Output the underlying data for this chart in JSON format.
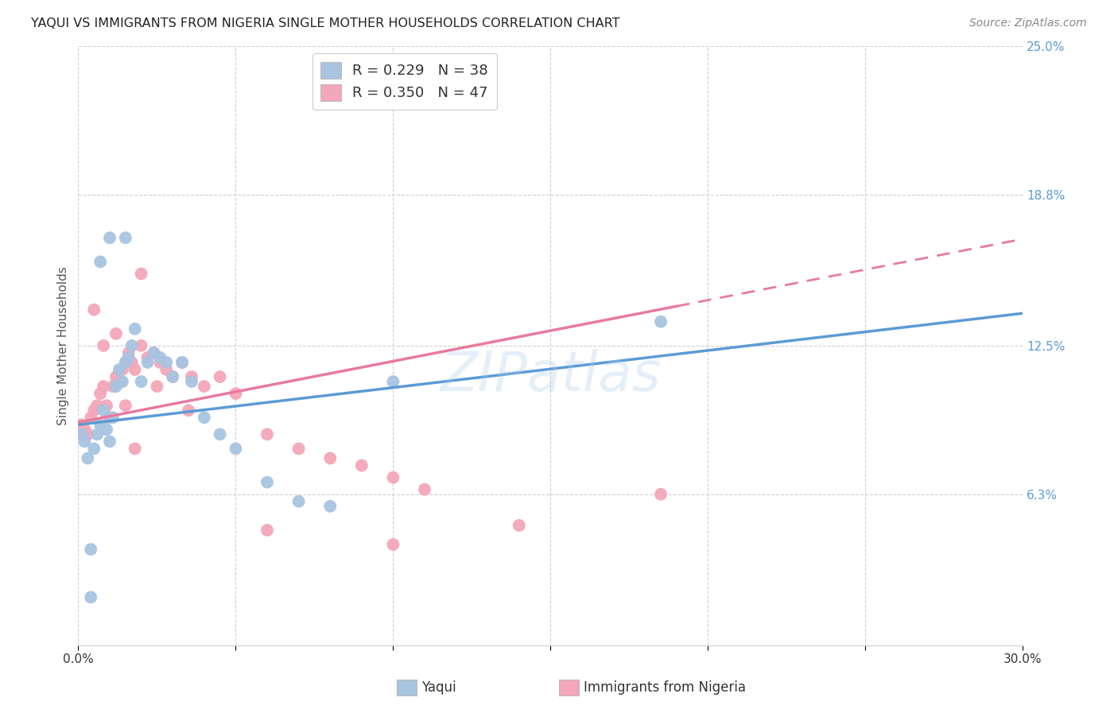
{
  "title": "YAQUI VS IMMIGRANTS FROM NIGERIA SINGLE MOTHER HOUSEHOLDS CORRELATION CHART",
  "source": "Source: ZipAtlas.com",
  "ylabel_label": "Single Mother Households",
  "x_min": 0.0,
  "x_max": 0.3,
  "y_min": 0.0,
  "y_max": 0.25,
  "x_tick_positions": [
    0.0,
    0.05,
    0.1,
    0.15,
    0.2,
    0.25,
    0.3
  ],
  "x_tick_labels": [
    "0.0%",
    "",
    "",
    "",
    "",
    "",
    "30.0%"
  ],
  "y_tick_labels_right": [
    "25.0%",
    "18.8%",
    "12.5%",
    "6.3%"
  ],
  "y_tick_vals_right": [
    0.25,
    0.188,
    0.125,
    0.063
  ],
  "blue_color": "#5b9bd5",
  "pink_color": "#e87aa0",
  "blue_scatter_color": "#a8c4e0",
  "pink_scatter_color": "#f4a7b9",
  "background_color": "#ffffff",
  "grid_color": "#d0d0d0",
  "watermark": "ZIPatlas",
  "blue_line_intercept": 0.092,
  "blue_line_slope": 0.155,
  "pink_line_intercept": 0.093,
  "pink_line_slope": 0.255,
  "legend_r1": "R = 0.229",
  "legend_n1": "N = 38",
  "legend_r2": "R = 0.350",
  "legend_n2": "N = 47",
  "blue_points_x": [
    0.001,
    0.002,
    0.003,
    0.004,
    0.005,
    0.006,
    0.007,
    0.008,
    0.009,
    0.01,
    0.011,
    0.012,
    0.013,
    0.014,
    0.015,
    0.016,
    0.017,
    0.018,
    0.02,
    0.022,
    0.024,
    0.026,
    0.028,
    0.03,
    0.033,
    0.036,
    0.04,
    0.045,
    0.05,
    0.06,
    0.07,
    0.08,
    0.1,
    0.004,
    0.007,
    0.01,
    0.185,
    0.015
  ],
  "blue_points_y": [
    0.088,
    0.085,
    0.078,
    0.04,
    0.082,
    0.088,
    0.092,
    0.098,
    0.09,
    0.085,
    0.095,
    0.108,
    0.115,
    0.11,
    0.118,
    0.12,
    0.125,
    0.132,
    0.11,
    0.118,
    0.122,
    0.12,
    0.118,
    0.112,
    0.118,
    0.11,
    0.095,
    0.088,
    0.082,
    0.068,
    0.06,
    0.058,
    0.11,
    0.02,
    0.16,
    0.17,
    0.135,
    0.17
  ],
  "pink_points_x": [
    0.001,
    0.002,
    0.003,
    0.004,
    0.005,
    0.006,
    0.007,
    0.008,
    0.009,
    0.01,
    0.011,
    0.012,
    0.013,
    0.014,
    0.015,
    0.016,
    0.017,
    0.018,
    0.02,
    0.022,
    0.024,
    0.026,
    0.028,
    0.03,
    0.033,
    0.036,
    0.04,
    0.045,
    0.05,
    0.06,
    0.07,
    0.08,
    0.09,
    0.1,
    0.11,
    0.012,
    0.185,
    0.005,
    0.02,
    0.008,
    0.015,
    0.025,
    0.035,
    0.018,
    0.06,
    0.1,
    0.14
  ],
  "pink_points_y": [
    0.092,
    0.09,
    0.088,
    0.095,
    0.098,
    0.1,
    0.105,
    0.108,
    0.1,
    0.095,
    0.108,
    0.112,
    0.11,
    0.115,
    0.118,
    0.122,
    0.118,
    0.115,
    0.125,
    0.12,
    0.122,
    0.118,
    0.115,
    0.112,
    0.118,
    0.112,
    0.108,
    0.112,
    0.105,
    0.088,
    0.082,
    0.078,
    0.075,
    0.07,
    0.065,
    0.13,
    0.063,
    0.14,
    0.155,
    0.125,
    0.1,
    0.108,
    0.098,
    0.082,
    0.048,
    0.042,
    0.05
  ]
}
